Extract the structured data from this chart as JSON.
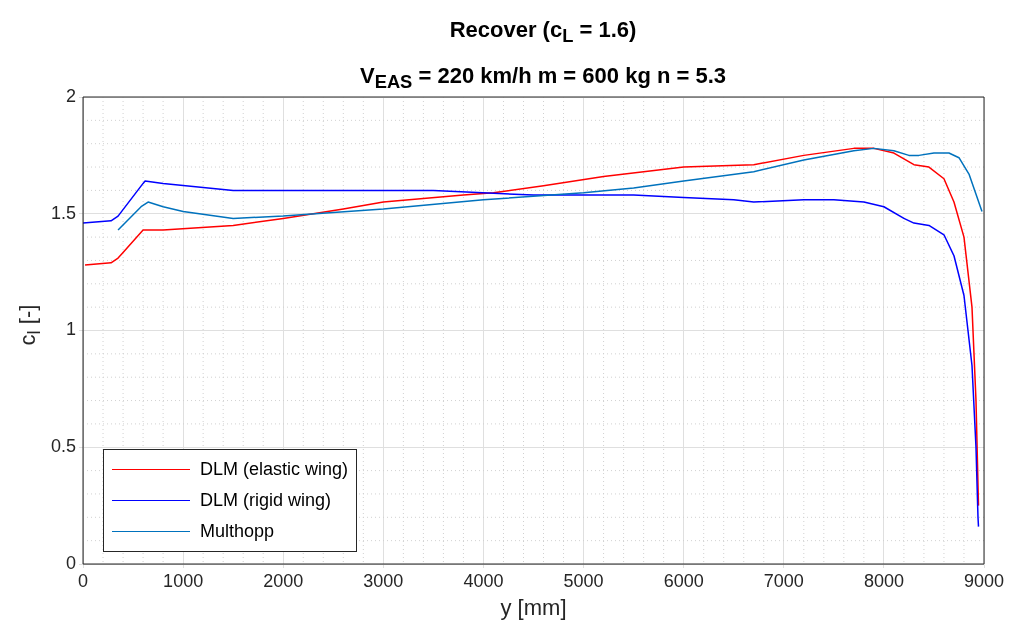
{
  "chart_data": {
    "type": "line",
    "title": "Recover (c$_{L}$ = 1.6)",
    "subtitle": "V$_{EAS}$ = 220 km/h m = 600 kg n = 5.3",
    "xlabel": "y [mm]",
    "ylabel": "c$_{l}$ [-]",
    "xlim": [
      0,
      9000
    ],
    "xticks": [
      0,
      1000,
      2000,
      3000,
      4000,
      5000,
      6000,
      7000,
      8000,
      9000
    ],
    "ylim": [
      0,
      2
    ],
    "yticks": [
      0,
      0.5,
      1,
      1.5,
      2
    ],
    "grid": true,
    "legend": "bottom left",
    "marker": "none",
    "line_style": "solid",
    "series": [
      {
        "name": "DLM (elastic wing)",
        "color": "#ff0000",
        "x": [
          20,
          280,
          350,
          600,
          800,
          1500,
          2000,
          2600,
          3000,
          3800,
          4100,
          4600,
          5200,
          6000,
          6700,
          7200,
          7700,
          7900,
          8100,
          8300,
          8450,
          8600,
          8700,
          8800,
          8880,
          8920,
          8945
        ],
        "values": [
          1.28,
          1.29,
          1.31,
          1.43,
          1.43,
          1.45,
          1.48,
          1.52,
          1.55,
          1.58,
          1.59,
          1.62,
          1.66,
          1.7,
          1.71,
          1.75,
          1.78,
          1.78,
          1.76,
          1.71,
          1.7,
          1.65,
          1.55,
          1.4,
          1.1,
          0.7,
          0.25
        ]
      },
      {
        "name": "DLM (rigid wing)",
        "color": "#0000ff",
        "x": [
          0,
          280,
          350,
          600,
          620,
          800,
          1500,
          2500,
          3500,
          4500,
          5500,
          6000,
          6500,
          6700,
          7200,
          7500,
          7800,
          8000,
          8200,
          8300,
          8450,
          8600,
          8700,
          8800,
          8880,
          8920,
          8940,
          8945
        ],
        "values": [
          1.46,
          1.47,
          1.49,
          1.63,
          1.64,
          1.63,
          1.6,
          1.6,
          1.6,
          1.58,
          1.58,
          1.57,
          1.56,
          1.55,
          1.56,
          1.56,
          1.55,
          1.53,
          1.48,
          1.46,
          1.45,
          1.41,
          1.32,
          1.15,
          0.85,
          0.5,
          0.2,
          0.16
        ]
      },
      {
        "name": "Multhopp",
        "color": "#0072bd",
        "x": [
          350,
          580,
          650,
          800,
          1000,
          1500,
          2000,
          3000,
          4000,
          5000,
          5500,
          6000,
          6700,
          7200,
          7700,
          7900,
          8100,
          8250,
          8350,
          8500,
          8650,
          8750,
          8850,
          8980
        ],
        "values": [
          1.43,
          1.53,
          1.55,
          1.53,
          1.51,
          1.48,
          1.49,
          1.52,
          1.56,
          1.59,
          1.61,
          1.64,
          1.68,
          1.73,
          1.77,
          1.78,
          1.77,
          1.75,
          1.75,
          1.76,
          1.76,
          1.74,
          1.67,
          1.51
        ]
      }
    ]
  }
}
